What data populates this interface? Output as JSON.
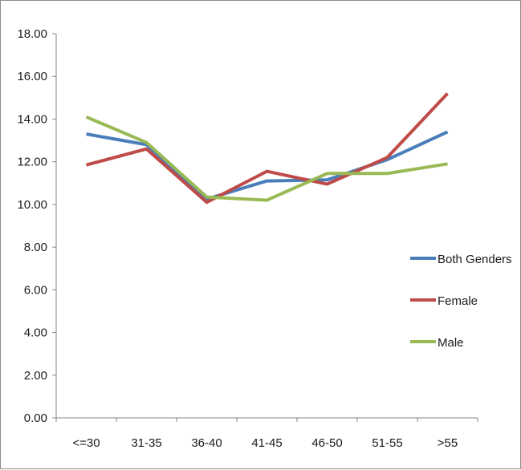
{
  "chart_data": {
    "type": "line",
    "title": "",
    "xlabel": "",
    "ylabel": "",
    "categories": [
      "<=30",
      "31-35",
      "36-40",
      "41-45",
      "46-50",
      "51-55",
      ">55"
    ],
    "ylim": [
      0,
      18
    ],
    "ytick_labels": [
      "0.00",
      "2.00",
      "4.00",
      "6.00",
      "8.00",
      "10.00",
      "12.00",
      "14.00",
      "16.00",
      "18.00"
    ],
    "grid": false,
    "legend_position": "right",
    "series": [
      {
        "name": "Both Genders",
        "color": "#4a7ebb",
        "values": [
          13.3,
          12.8,
          10.25,
          11.1,
          11.15,
          12.1,
          13.4
        ]
      },
      {
        "name": "Female",
        "color": "#be4b48",
        "values": [
          11.85,
          12.6,
          10.1,
          11.55,
          10.95,
          12.2,
          15.2
        ]
      },
      {
        "name": "Male",
        "color": "#98b954",
        "values": [
          14.1,
          12.9,
          10.35,
          10.2,
          11.45,
          11.45,
          11.9
        ]
      }
    ]
  }
}
